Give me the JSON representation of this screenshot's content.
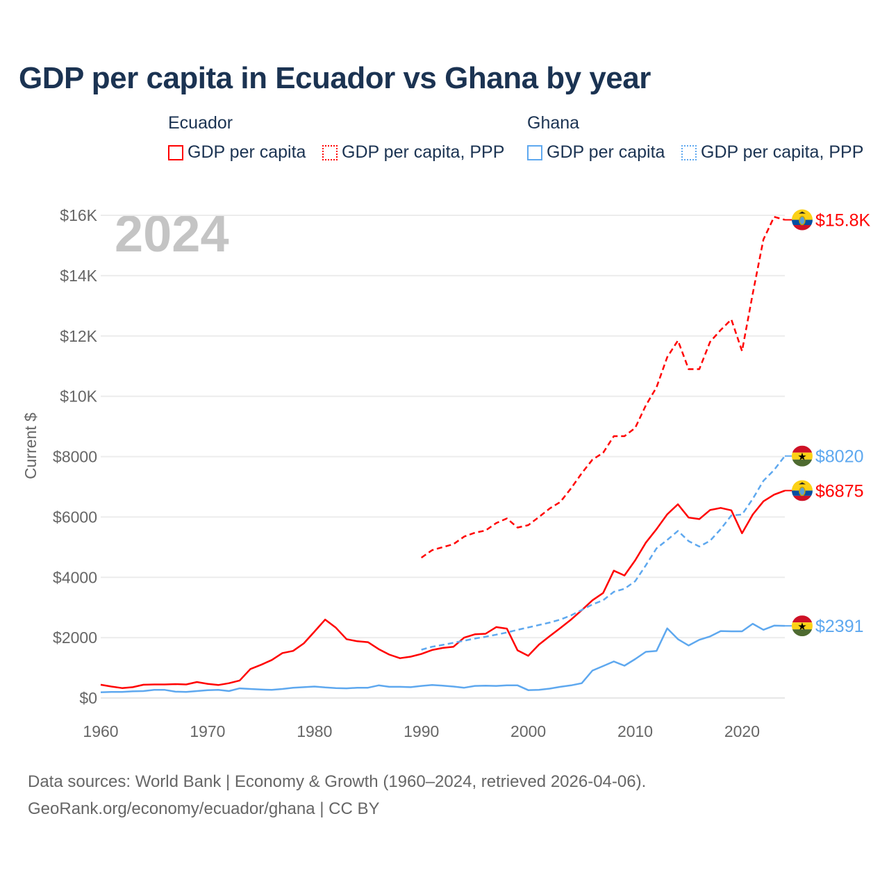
{
  "title": "GDP per capita in Ecuador vs Ghana by year",
  "legend": {
    "groups": [
      {
        "name": "Ecuador",
        "color": "#ff0000",
        "items": [
          "GDP per capita",
          "GDP per capita, PPP"
        ]
      },
      {
        "name": "Ghana",
        "color": "#5ea8ef",
        "items": [
          "GDP per capita",
          "GDP per capita, PPP"
        ]
      }
    ]
  },
  "year_label": "2024",
  "footer": {
    "line1": "Data sources: World Bank | Economy & Growth (1960–2024, retrieved 2026-04-06).",
    "line2": "GeoRank.org/economy/ecuador/ghana | CC BY"
  },
  "chart_data": {
    "type": "line",
    "title": "GDP per capita in Ecuador vs Ghana by year",
    "xlabel": "",
    "ylabel": "Current $",
    "xlim": [
      1960,
      2024
    ],
    "ylim": [
      0,
      16000
    ],
    "x_ticks": [
      "1960",
      "1970",
      "1980",
      "1990",
      "2000",
      "2010",
      "2020"
    ],
    "y_ticks": [
      "$0",
      "$2000",
      "$4000",
      "$6000",
      "$8000",
      "$10K",
      "$12K",
      "$14K",
      "$16K"
    ],
    "grid": true,
    "legend_position": "top",
    "series": [
      {
        "name": "Ecuador GDP per capita",
        "country": "Ecuador",
        "color": "#ff0000",
        "dashed": false,
        "start": 1960,
        "end_label": "$6875",
        "flag": "ecuador",
        "values": [
          440,
          380,
          330,
          360,
          440,
          450,
          450,
          460,
          450,
          530,
          470,
          430,
          490,
          580,
          960,
          1100,
          1260,
          1490,
          1560,
          1810,
          2200,
          2600,
          2330,
          1950,
          1880,
          1850,
          1620,
          1440,
          1320,
          1370,
          1460,
          1590,
          1660,
          1700,
          2000,
          2110,
          2130,
          2350,
          2300,
          1580,
          1400,
          1770,
          2050,
          2320,
          2600,
          2910,
          3240,
          3480,
          4220,
          4060,
          4560,
          5150,
          5600,
          6090,
          6420,
          5980,
          5930,
          6230,
          6300,
          6220,
          5460,
          6080,
          6520,
          6740,
          6875
        ]
      },
      {
        "name": "Ecuador GDP per capita, PPP",
        "country": "Ecuador",
        "color": "#ff0000",
        "dashed": true,
        "start": 1990,
        "end_label": "$15.8K",
        "flag": "ecuador",
        "values": [
          4650,
          4900,
          5000,
          5100,
          5350,
          5480,
          5550,
          5800,
          5950,
          5650,
          5730,
          6000,
          6280,
          6500,
          6950,
          7450,
          7900,
          8130,
          8680,
          8680,
          8950,
          9700,
          10300,
          11300,
          11850,
          10900,
          10900,
          11800,
          12200,
          12550,
          11500,
          13400,
          15200,
          15950,
          15850
        ]
      },
      {
        "name": "Ghana GDP per capita",
        "country": "Ghana",
        "color": "#5ea8ef",
        "dashed": false,
        "start": 1960,
        "end_label": "$2391",
        "flag": "ghana",
        "values": [
          190,
          200,
          200,
          220,
          230,
          270,
          270,
          210,
          200,
          230,
          260,
          270,
          230,
          320,
          300,
          280,
          270,
          300,
          340,
          360,
          380,
          350,
          330,
          320,
          340,
          340,
          420,
          370,
          370,
          360,
          400,
          430,
          410,
          380,
          340,
          400,
          410,
          400,
          420,
          420,
          260,
          270,
          310,
          370,
          420,
          490,
          910,
          1060,
          1210,
          1070,
          1290,
          1530,
          1560,
          2310,
          1950,
          1740,
          1930,
          2040,
          2220,
          2210,
          2210,
          2460,
          2260,
          2400,
          2391
        ]
      },
      {
        "name": "Ghana GDP per capita, PPP",
        "country": "Ghana",
        "color": "#5ea8ef",
        "dashed": true,
        "start": 1990,
        "end_label": "$8020",
        "flag": "ghana",
        "values": [
          1600,
          1700,
          1760,
          1830,
          1900,
          1970,
          2030,
          2100,
          2170,
          2260,
          2340,
          2420,
          2500,
          2600,
          2740,
          2920,
          3100,
          3240,
          3520,
          3620,
          3870,
          4400,
          4960,
          5240,
          5540,
          5200,
          5020,
          5210,
          5600,
          6050,
          6080,
          6600,
          7200,
          7560,
          8020
        ]
      }
    ]
  }
}
